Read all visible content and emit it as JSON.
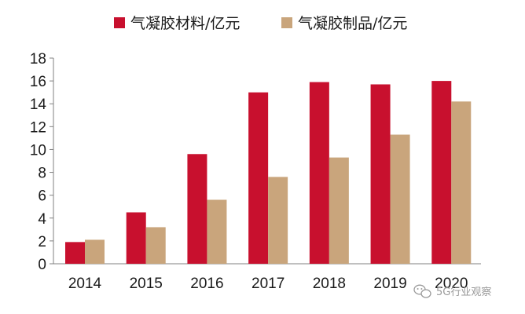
{
  "chart_data": {
    "type": "bar",
    "categories": [
      "2014",
      "2015",
      "2016",
      "2017",
      "2018",
      "2019",
      "2020"
    ],
    "series": [
      {
        "name": "气凝胶材料/亿元",
        "color": "#c8102e",
        "values": [
          1.9,
          4.5,
          9.6,
          15.0,
          15.9,
          15.7,
          16.0
        ]
      },
      {
        "name": "气凝胶制品/亿元",
        "color": "#c9a57c",
        "values": [
          2.1,
          3.2,
          5.6,
          7.6,
          9.3,
          11.3,
          14.2
        ]
      }
    ],
    "ylim": [
      0,
      18
    ],
    "yticks": [
      "0",
      "2",
      "4",
      "6",
      "8",
      "10",
      "12",
      "14",
      "16",
      "18"
    ],
    "grid": false,
    "legend_position": "top"
  },
  "watermark": {
    "text": "5G行业观察",
    "icon": "wechat-icon"
  }
}
